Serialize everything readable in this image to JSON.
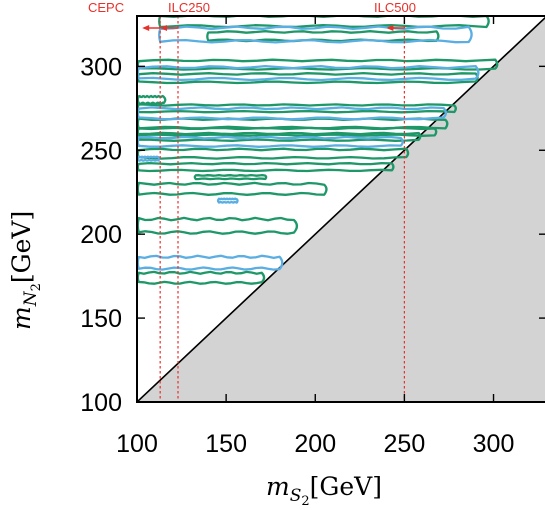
{
  "chart_data": {
    "type": "contour",
    "xlabel": {
      "main": "m",
      "sub": "S",
      "subsub": "2",
      "unit": "[GeV]"
    },
    "ylabel": {
      "main": "m",
      "sub": "N",
      "subsub": "2",
      "unit": "[GeV]"
    },
    "xlim": [
      100,
      330
    ],
    "ylim": [
      100,
      330
    ],
    "xticks": [
      100,
      150,
      200,
      250,
      300
    ],
    "yticks": [
      100,
      150,
      200,
      250,
      300
    ],
    "excluded_region": {
      "condition": "m_S2 > m_N2",
      "color": "#d3d3d3"
    },
    "diagonal": {
      "from": [
        100,
        100
      ],
      "to": [
        330,
        330
      ]
    },
    "thresholds": [
      {
        "label": "CEPC",
        "x": 113,
        "color": "#e8302a"
      },
      {
        "label": "ILC250",
        "x": 123,
        "color": "#e8302a"
      },
      {
        "label": "ILC500",
        "x": 250,
        "color": "#e8302a"
      }
    ],
    "series": [
      {
        "color": "#1e9868",
        "bands": [
          {
            "y": 327,
            "half": 3,
            "x0": 113,
            "x1": 296
          },
          {
            "y": 318,
            "half": 2.5,
            "x0": 140,
            "x1": 268
          },
          {
            "y": 301,
            "half": 2.5,
            "x0": 101,
            "x1": 301
          },
          {
            "y": 293,
            "half": 2.5,
            "x0": 101,
            "x1": 290
          },
          {
            "y": 280,
            "half": 2,
            "x0": 101,
            "x1": 115
          },
          {
            "y": 275,
            "half": 2,
            "x0": 101,
            "x1": 278
          },
          {
            "y": 266,
            "half": 2.5,
            "x0": 101,
            "x1": 273
          },
          {
            "y": 261,
            "half": 2,
            "x0": 101,
            "x1": 267
          },
          {
            "y": 258,
            "half": 2,
            "x0": 101,
            "x1": 258
          },
          {
            "y": 248,
            "half": 2.5,
            "x0": 101,
            "x1": 251
          },
          {
            "y": 240,
            "half": 2,
            "x0": 101,
            "x1": 243
          },
          {
            "y": 234,
            "half": 1,
            "x0": 133,
            "x1": 172
          },
          {
            "y": 227,
            "half": 3,
            "x0": 101,
            "x1": 205
          },
          {
            "y": 205,
            "half": 4,
            "x0": 101,
            "x1": 188
          },
          {
            "y": 174,
            "half": 3,
            "x0": 101,
            "x1": 170
          }
        ]
      },
      {
        "color": "#5aaee2",
        "bands": [
          {
            "y": 319,
            "half": 4,
            "x0": 113,
            "x1": 286
          },
          {
            "y": 296,
            "half": 3.5,
            "x0": 101,
            "x1": 290
          },
          {
            "y": 272,
            "half": 3,
            "x0": 101,
            "x1": 272
          },
          {
            "y": 255,
            "half": 2.5,
            "x0": 101,
            "x1": 248
          },
          {
            "y": 245,
            "half": 1,
            "x0": 101,
            "x1": 112
          },
          {
            "y": 220,
            "half": 1,
            "x0": 146,
            "x1": 156
          },
          {
            "y": 183,
            "half": 3.5,
            "x0": 101,
            "x1": 180
          }
        ]
      }
    ]
  }
}
